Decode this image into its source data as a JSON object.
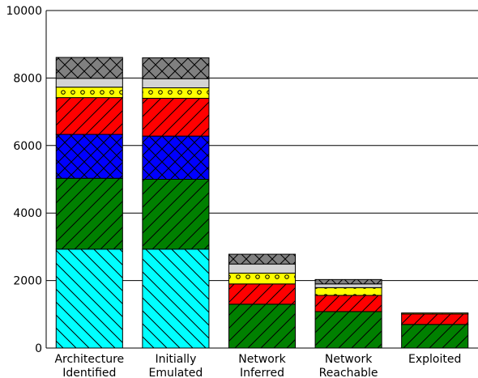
{
  "chart_data": {
    "type": "bar",
    "stacked": true,
    "categories": [
      "Architecture\nIdentified",
      "Initially\nEmulated",
      "Network\nInferred",
      "Network\nReachable",
      "Exploited"
    ],
    "ylim": [
      0,
      10000
    ],
    "yticks": [
      0,
      2000,
      4000,
      6000,
      8000,
      10000
    ],
    "grid": "horizontal",
    "title": "",
    "xlabel": "",
    "ylabel": "",
    "series": [
      {
        "color": "#00ffff",
        "hatch": "backslash",
        "values": [
          2930,
          2930,
          0,
          0,
          0
        ]
      },
      {
        "color": "#008000",
        "hatch": "slash",
        "values": [
          2100,
          2070,
          1300,
          1080,
          700
        ]
      },
      {
        "color": "#0000ff",
        "hatch": "cross",
        "values": [
          1300,
          1280,
          0,
          0,
          0
        ]
      },
      {
        "color": "#ff0000",
        "hatch": "slash",
        "values": [
          1090,
          1120,
          600,
          480,
          310
        ]
      },
      {
        "color": "#ffff00",
        "hatch": "circle",
        "values": [
          310,
          310,
          320,
          230,
          30
        ]
      },
      {
        "color": "#d3d3d3",
        "hatch": "none",
        "values": [
          260,
          270,
          270,
          110,
          0
        ]
      },
      {
        "color": "#808080",
        "hatch": "cross",
        "values": [
          620,
          620,
          290,
          130,
          0
        ]
      }
    ]
  }
}
